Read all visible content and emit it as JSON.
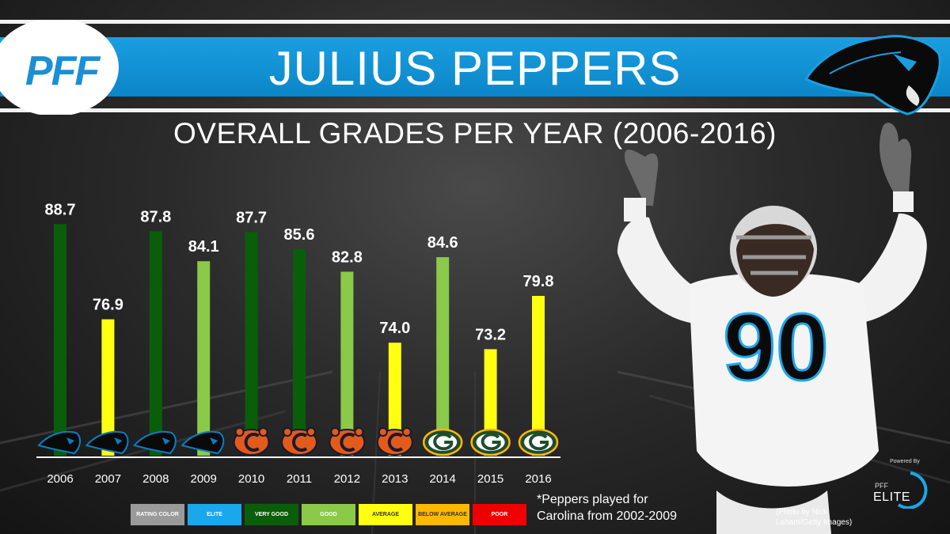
{
  "header": {
    "title": "JULIUS PEPPERS",
    "logo_text": "PFF",
    "subtitle": "OVERALL GRADES PER YEAR (2006-2016)"
  },
  "chart_data": {
    "type": "bar",
    "title": "OVERALL GRADES PER YEAR (2006-2016)",
    "categories": [
      "2006",
      "2007",
      "2008",
      "2009",
      "2010",
      "2011",
      "2012",
      "2013",
      "2014",
      "2015",
      "2016"
    ],
    "values": [
      88.7,
      76.9,
      87.8,
      84.1,
      87.7,
      85.6,
      82.8,
      74.0,
      84.6,
      73.2,
      79.8
    ],
    "value_labels": [
      "88.7",
      "76.9",
      "87.8",
      "84.1",
      "87.7",
      "85.6",
      "82.8",
      "74.0",
      "84.6",
      "73.2",
      "79.8"
    ],
    "rating": [
      "very-good",
      "average",
      "very-good",
      "good",
      "very-good",
      "very-good",
      "good",
      "average",
      "good",
      "average",
      "average"
    ],
    "teams": [
      "panthers",
      "panthers",
      "panthers",
      "panthers",
      "bears",
      "bears",
      "bears",
      "bears",
      "packers",
      "packers",
      "packers"
    ],
    "ylim": [
      60,
      90
    ],
    "xlabel": "",
    "ylabel": "",
    "grid": false
  },
  "rating_colors": {
    "very-good": "#0a5e0a",
    "good": "#8bc94a",
    "average": "#ffff10"
  },
  "legend": [
    {
      "label": "RATING COLOR",
      "color": "#9a9a9a",
      "text_color": "#ffffff"
    },
    {
      "label": "ELITE",
      "color": "#1aa7ec",
      "text_color": "#ffffff"
    },
    {
      "label": "VERY GOOD",
      "color": "#0a5e0a",
      "text_color": "#ffffff"
    },
    {
      "label": "GOOD",
      "color": "#8bc94a",
      "text_color": "#ffffff"
    },
    {
      "label": "AVERAGE",
      "color": "#ffff10",
      "text_color": "#333333"
    },
    {
      "label": "BELOW AVERAGE",
      "color": "#ffb800",
      "text_color": "#333333"
    },
    {
      "label": "POOR",
      "color": "#ee0000",
      "text_color": "#ffffff"
    }
  ],
  "footnote": {
    "line1": "*Peppers played for",
    "line2": "Carolina from 2002-2009"
  },
  "credit": "(Photo by Nick Laham/Getty Images)",
  "badge": {
    "powered_by": "Powered By",
    "brand": "PFF",
    "product": "ELITE"
  },
  "team_colors": {
    "panthers": "#0a7ec2",
    "bears": "#e25a1c",
    "packers": "#1f4d2b"
  },
  "icons": {
    "logo": "pff-logo-icon",
    "team": "panthers-logo-icon",
    "player": "player-photo-icon"
  }
}
